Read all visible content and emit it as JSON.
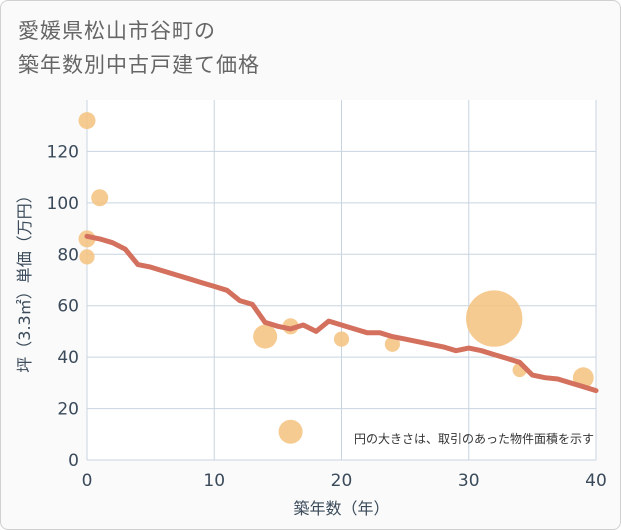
{
  "title": {
    "line1": "愛媛県松山市谷町の",
    "line2": "築年数別中古戸建て価格"
  },
  "colors": {
    "bubble": "#f5c27e",
    "trend": "#d4705e",
    "grid": "#c8d4e0",
    "plot_bg": "#ffffff"
  },
  "chart_data": {
    "type": "scatter",
    "title": "愛媛県松山市谷町の築年数別中古戸建て価格",
    "xlabel": "築年数（年）",
    "ylabel": "坪（3.3㎡）単価（万円）",
    "xlim": [
      0,
      40
    ],
    "ylim": [
      0,
      140
    ],
    "xticks": [
      0,
      10,
      20,
      30,
      40
    ],
    "yticks": [
      0,
      20,
      40,
      60,
      80,
      100,
      120
    ],
    "grid": true,
    "note": "円の大きさは、取引のあった物件面積を示す",
    "bubbles": [
      {
        "x": 0,
        "y": 132,
        "size": 1
      },
      {
        "x": 0,
        "y": 86,
        "size": 1
      },
      {
        "x": 0,
        "y": 79,
        "size": 0.8
      },
      {
        "x": 1,
        "y": 102,
        "size": 1
      },
      {
        "x": 14,
        "y": 48,
        "size": 2
      },
      {
        "x": 16,
        "y": 52,
        "size": 0.9
      },
      {
        "x": 16,
        "y": 11,
        "size": 2
      },
      {
        "x": 20,
        "y": 47,
        "size": 0.8
      },
      {
        "x": 24,
        "y": 45,
        "size": 0.8
      },
      {
        "x": 32,
        "y": 55,
        "size": 11
      },
      {
        "x": 34,
        "y": 35,
        "size": 0.7
      },
      {
        "x": 39,
        "y": 32,
        "size": 1.5
      }
    ],
    "trend_line": {
      "x": [
        0,
        1,
        2,
        3,
        4,
        5,
        6,
        7,
        8,
        9,
        10,
        11,
        12,
        13,
        14,
        15,
        16,
        17,
        18,
        19,
        20,
        21,
        22,
        23,
        24,
        25,
        26,
        27,
        28,
        29,
        30,
        31,
        32,
        33,
        34,
        35,
        36,
        37,
        38,
        39,
        40
      ],
      "y": [
        87,
        86,
        84.5,
        82,
        76,
        75,
        73.5,
        72,
        70.5,
        69,
        67.5,
        66,
        62,
        60.5,
        53.5,
        52,
        51,
        52.5,
        50,
        54,
        52.5,
        51,
        49.5,
        49.5,
        48,
        47,
        46,
        45,
        44,
        42.5,
        43.5,
        42.5,
        41,
        39.5,
        38,
        33,
        32,
        31.5,
        30,
        28.5,
        27
      ]
    }
  }
}
